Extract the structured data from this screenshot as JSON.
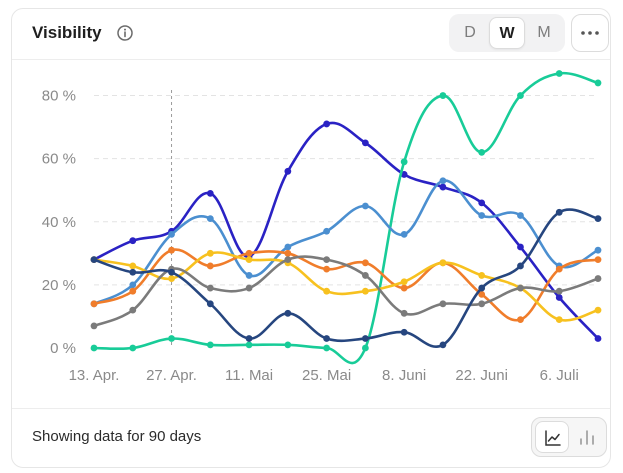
{
  "header": {
    "title": "Visibility",
    "range_options": [
      "D",
      "W",
      "M"
    ],
    "selected_range": "W"
  },
  "footer": {
    "status_text": "Showing data for 90 days",
    "selected_view": "line-chart"
  },
  "icons": {
    "info": "info-icon",
    "more": "more-horizontal-icon",
    "line_view": "line-chart-icon",
    "bar_view": "bar-chart-icon"
  },
  "chart_data": {
    "type": "line",
    "x": [
      "13. Apr.",
      "20. Apr.",
      "27. Apr.",
      "4. Mai",
      "11. Mai",
      "18. Mai",
      "25. Mai",
      "1. Juni",
      "8. Juni",
      "15. Juni",
      "22. Juni",
      "29. Juni",
      "6. Juli",
      "13. Juli"
    ],
    "x_tick_labels": [
      "13. Apr.",
      "27. Apr.",
      "11. Mai",
      "25. Mai",
      "8. Juni",
      "22. Juni",
      "6. Juli"
    ],
    "y_tick_labels": [
      "0 %",
      "20 %",
      "40 %",
      "60 %",
      "80 %"
    ],
    "ylim": [
      0,
      90
    ],
    "y_ticks": [
      0,
      20,
      40,
      60,
      80
    ],
    "grid": true,
    "vertical_marker_x": "27. Apr.",
    "series": [
      {
        "color": "#2a22c4",
        "values": [
          28,
          34,
          37,
          49,
          29,
          56,
          71,
          65,
          55,
          51,
          46,
          32,
          16,
          3
        ]
      },
      {
        "color": "#18cc98",
        "values": [
          0,
          0,
          3,
          1,
          1,
          1,
          0,
          0,
          59,
          80,
          62,
          80,
          87,
          84
        ]
      },
      {
        "color": "#4b8fd0",
        "values": [
          14,
          20,
          36,
          41,
          23,
          32,
          37,
          45,
          36,
          53,
          42,
          42,
          26,
          31
        ]
      },
      {
        "color": "#f07d2b",
        "values": [
          14,
          18,
          31,
          26,
          30,
          30,
          25,
          27,
          19,
          27,
          17,
          9,
          25,
          28
        ]
      },
      {
        "color": "#f7c11f",
        "values": [
          28,
          26,
          22,
          30,
          28,
          27,
          18,
          18,
          21,
          27,
          23,
          19,
          9,
          12
        ]
      },
      {
        "color": "#7b7b7b",
        "values": [
          7,
          12,
          25,
          19,
          19,
          28,
          28,
          23,
          11,
          14,
          14,
          19,
          18,
          22
        ]
      },
      {
        "color": "#26467f",
        "values": [
          28,
          24,
          24,
          14,
          3,
          11,
          3,
          3,
          5,
          1,
          19,
          26,
          43,
          41
        ]
      }
    ]
  }
}
